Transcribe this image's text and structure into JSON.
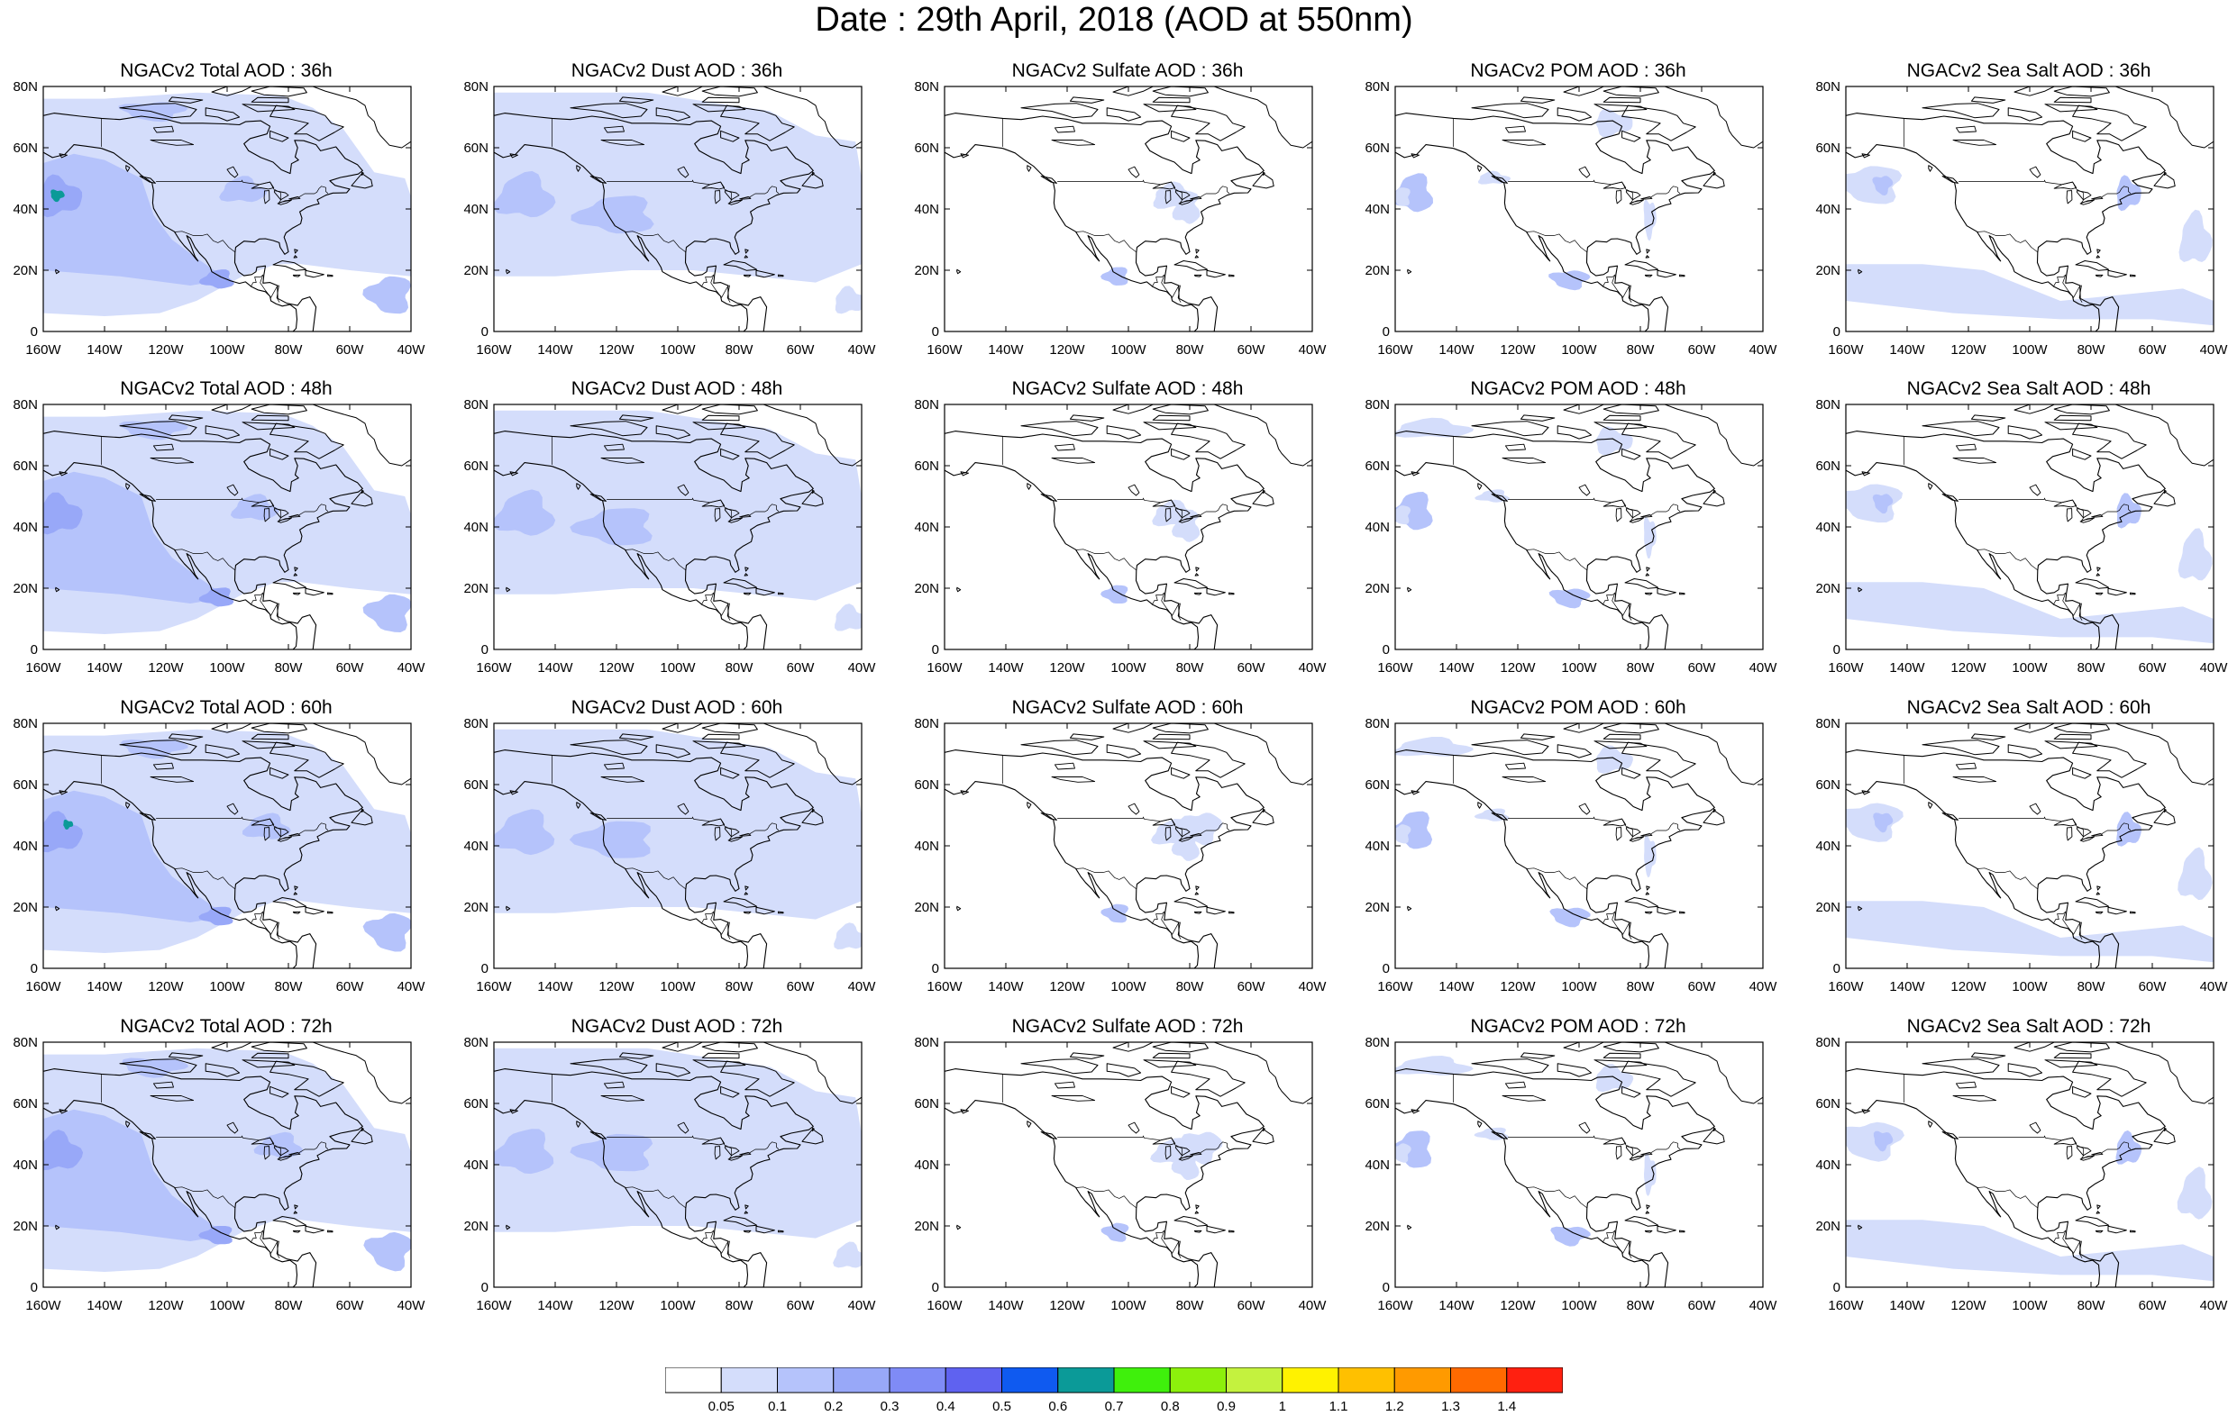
{
  "title": "Date : 29th April, 2018 (AOD at 550nm)",
  "panels": [
    {
      "title": "NGACv2 Total AOD : 36h",
      "species": "total",
      "hour": 36
    },
    {
      "title": "NGACv2 Dust AOD : 36h",
      "species": "dust",
      "hour": 36
    },
    {
      "title": "NGACv2 Sulfate AOD : 36h",
      "species": "sulfate",
      "hour": 36
    },
    {
      "title": "NGACv2 POM AOD : 36h",
      "species": "pom",
      "hour": 36
    },
    {
      "title": "NGACv2 Sea Salt AOD : 36h",
      "species": "seasalt",
      "hour": 36
    },
    {
      "title": "NGACv2 Total AOD : 48h",
      "species": "total",
      "hour": 48
    },
    {
      "title": "NGACv2 Dust AOD : 48h",
      "species": "dust",
      "hour": 48
    },
    {
      "title": "NGACv2 Sulfate AOD : 48h",
      "species": "sulfate",
      "hour": 48
    },
    {
      "title": "NGACv2 POM AOD : 48h",
      "species": "pom",
      "hour": 48
    },
    {
      "title": "NGACv2 Sea Salt AOD : 48h",
      "species": "seasalt",
      "hour": 48
    },
    {
      "title": "NGACv2 Total AOD : 60h",
      "species": "total",
      "hour": 60
    },
    {
      "title": "NGACv2 Dust AOD : 60h",
      "species": "dust",
      "hour": 60
    },
    {
      "title": "NGACv2 Sulfate AOD : 60h",
      "species": "sulfate",
      "hour": 60
    },
    {
      "title": "NGACv2 POM AOD : 60h",
      "species": "pom",
      "hour": 60
    },
    {
      "title": "NGACv2 Sea Salt AOD : 60h",
      "species": "seasalt",
      "hour": 60
    },
    {
      "title": "NGACv2 Total AOD : 72h",
      "species": "total",
      "hour": 72
    },
    {
      "title": "NGACv2 Dust AOD : 72h",
      "species": "dust",
      "hour": 72
    },
    {
      "title": "NGACv2 Sulfate AOD : 72h",
      "species": "sulfate",
      "hour": 72
    },
    {
      "title": "NGACv2 POM AOD : 72h",
      "species": "pom",
      "hour": 72
    },
    {
      "title": "NGACv2 Sea Salt  AOD : 72h",
      "species": "seasalt",
      "hour": 72
    }
  ],
  "map": {
    "lon_range": [
      -160,
      -40
    ],
    "lat_range": [
      0,
      80
    ],
    "lon_ticks": [
      "160W",
      "140W",
      "120W",
      "100W",
      "80W",
      "60W",
      "40W"
    ],
    "lat_ticks": [
      "0",
      "20N",
      "40N",
      "60N",
      "80N"
    ],
    "coastline_color": "#000000"
  },
  "colorbar": {
    "levels": [
      "0.05",
      "0.1",
      "0.2",
      "0.3",
      "0.4",
      "0.5",
      "0.6",
      "0.7",
      "0.8",
      "0.9",
      "1",
      "1.1",
      "1.2",
      "1.3",
      "1.4"
    ],
    "colors": [
      "#ffffff",
      "#d4ddfb",
      "#b5c3fb",
      "#98a8f8",
      "#7f8bf6",
      "#5f62f0",
      "#0f5af0",
      "#0b9a98",
      "#3ff00c",
      "#8cf00c",
      "#c4f23e",
      "#fff200",
      "#ffc000",
      "#ff9a00",
      "#ff6a00",
      "#ff2010"
    ]
  }
}
